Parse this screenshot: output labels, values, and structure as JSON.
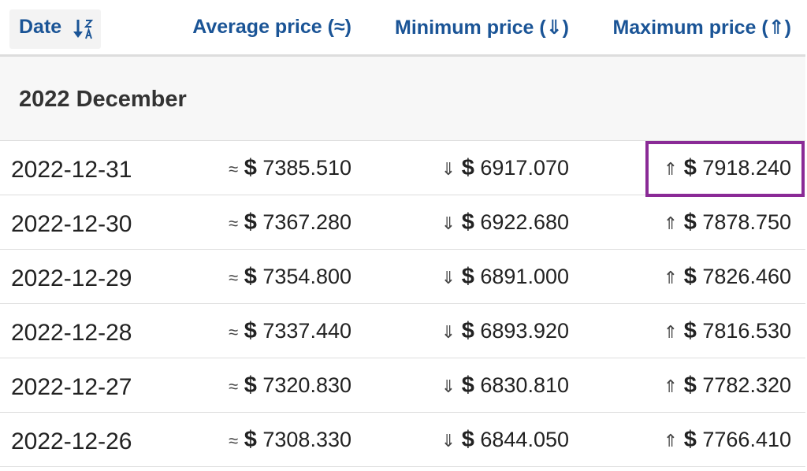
{
  "table": {
    "header": [
      "Date",
      "Average price (≈)",
      "Minimum price (⇓)",
      "Maximum price (⇑)"
    ],
    "group": "2022 December",
    "rows": [
      [
        "2022-12-31",
        "≈",
        "$",
        "7385.510",
        "⇓",
        "$",
        "6917.070",
        "⇑",
        "$",
        "7918.240"
      ],
      [
        "2022-12-30",
        "≈",
        "$",
        "7367.280",
        "⇓",
        "$",
        "6922.680",
        "⇑",
        "$",
        "7878.750"
      ],
      [
        "2022-12-29",
        "≈",
        "$",
        "7354.800",
        "⇓",
        "$",
        "6891.000",
        "⇑",
        "$",
        "7826.460"
      ],
      [
        "2022-12-28",
        "≈",
        "$",
        "7337.440",
        "⇓",
        "$",
        "6893.920",
        "⇑",
        "$",
        "7816.530"
      ],
      [
        "2022-12-27",
        "≈",
        "$",
        "7320.830",
        "⇓",
        "$",
        "6830.810",
        "⇑",
        "$",
        "7782.320"
      ],
      [
        "2022-12-26",
        "≈",
        "$",
        "7308.330",
        "⇓",
        "$",
        "6844.050",
        "⇑",
        "$",
        "7766.410"
      ]
    ]
  }
}
